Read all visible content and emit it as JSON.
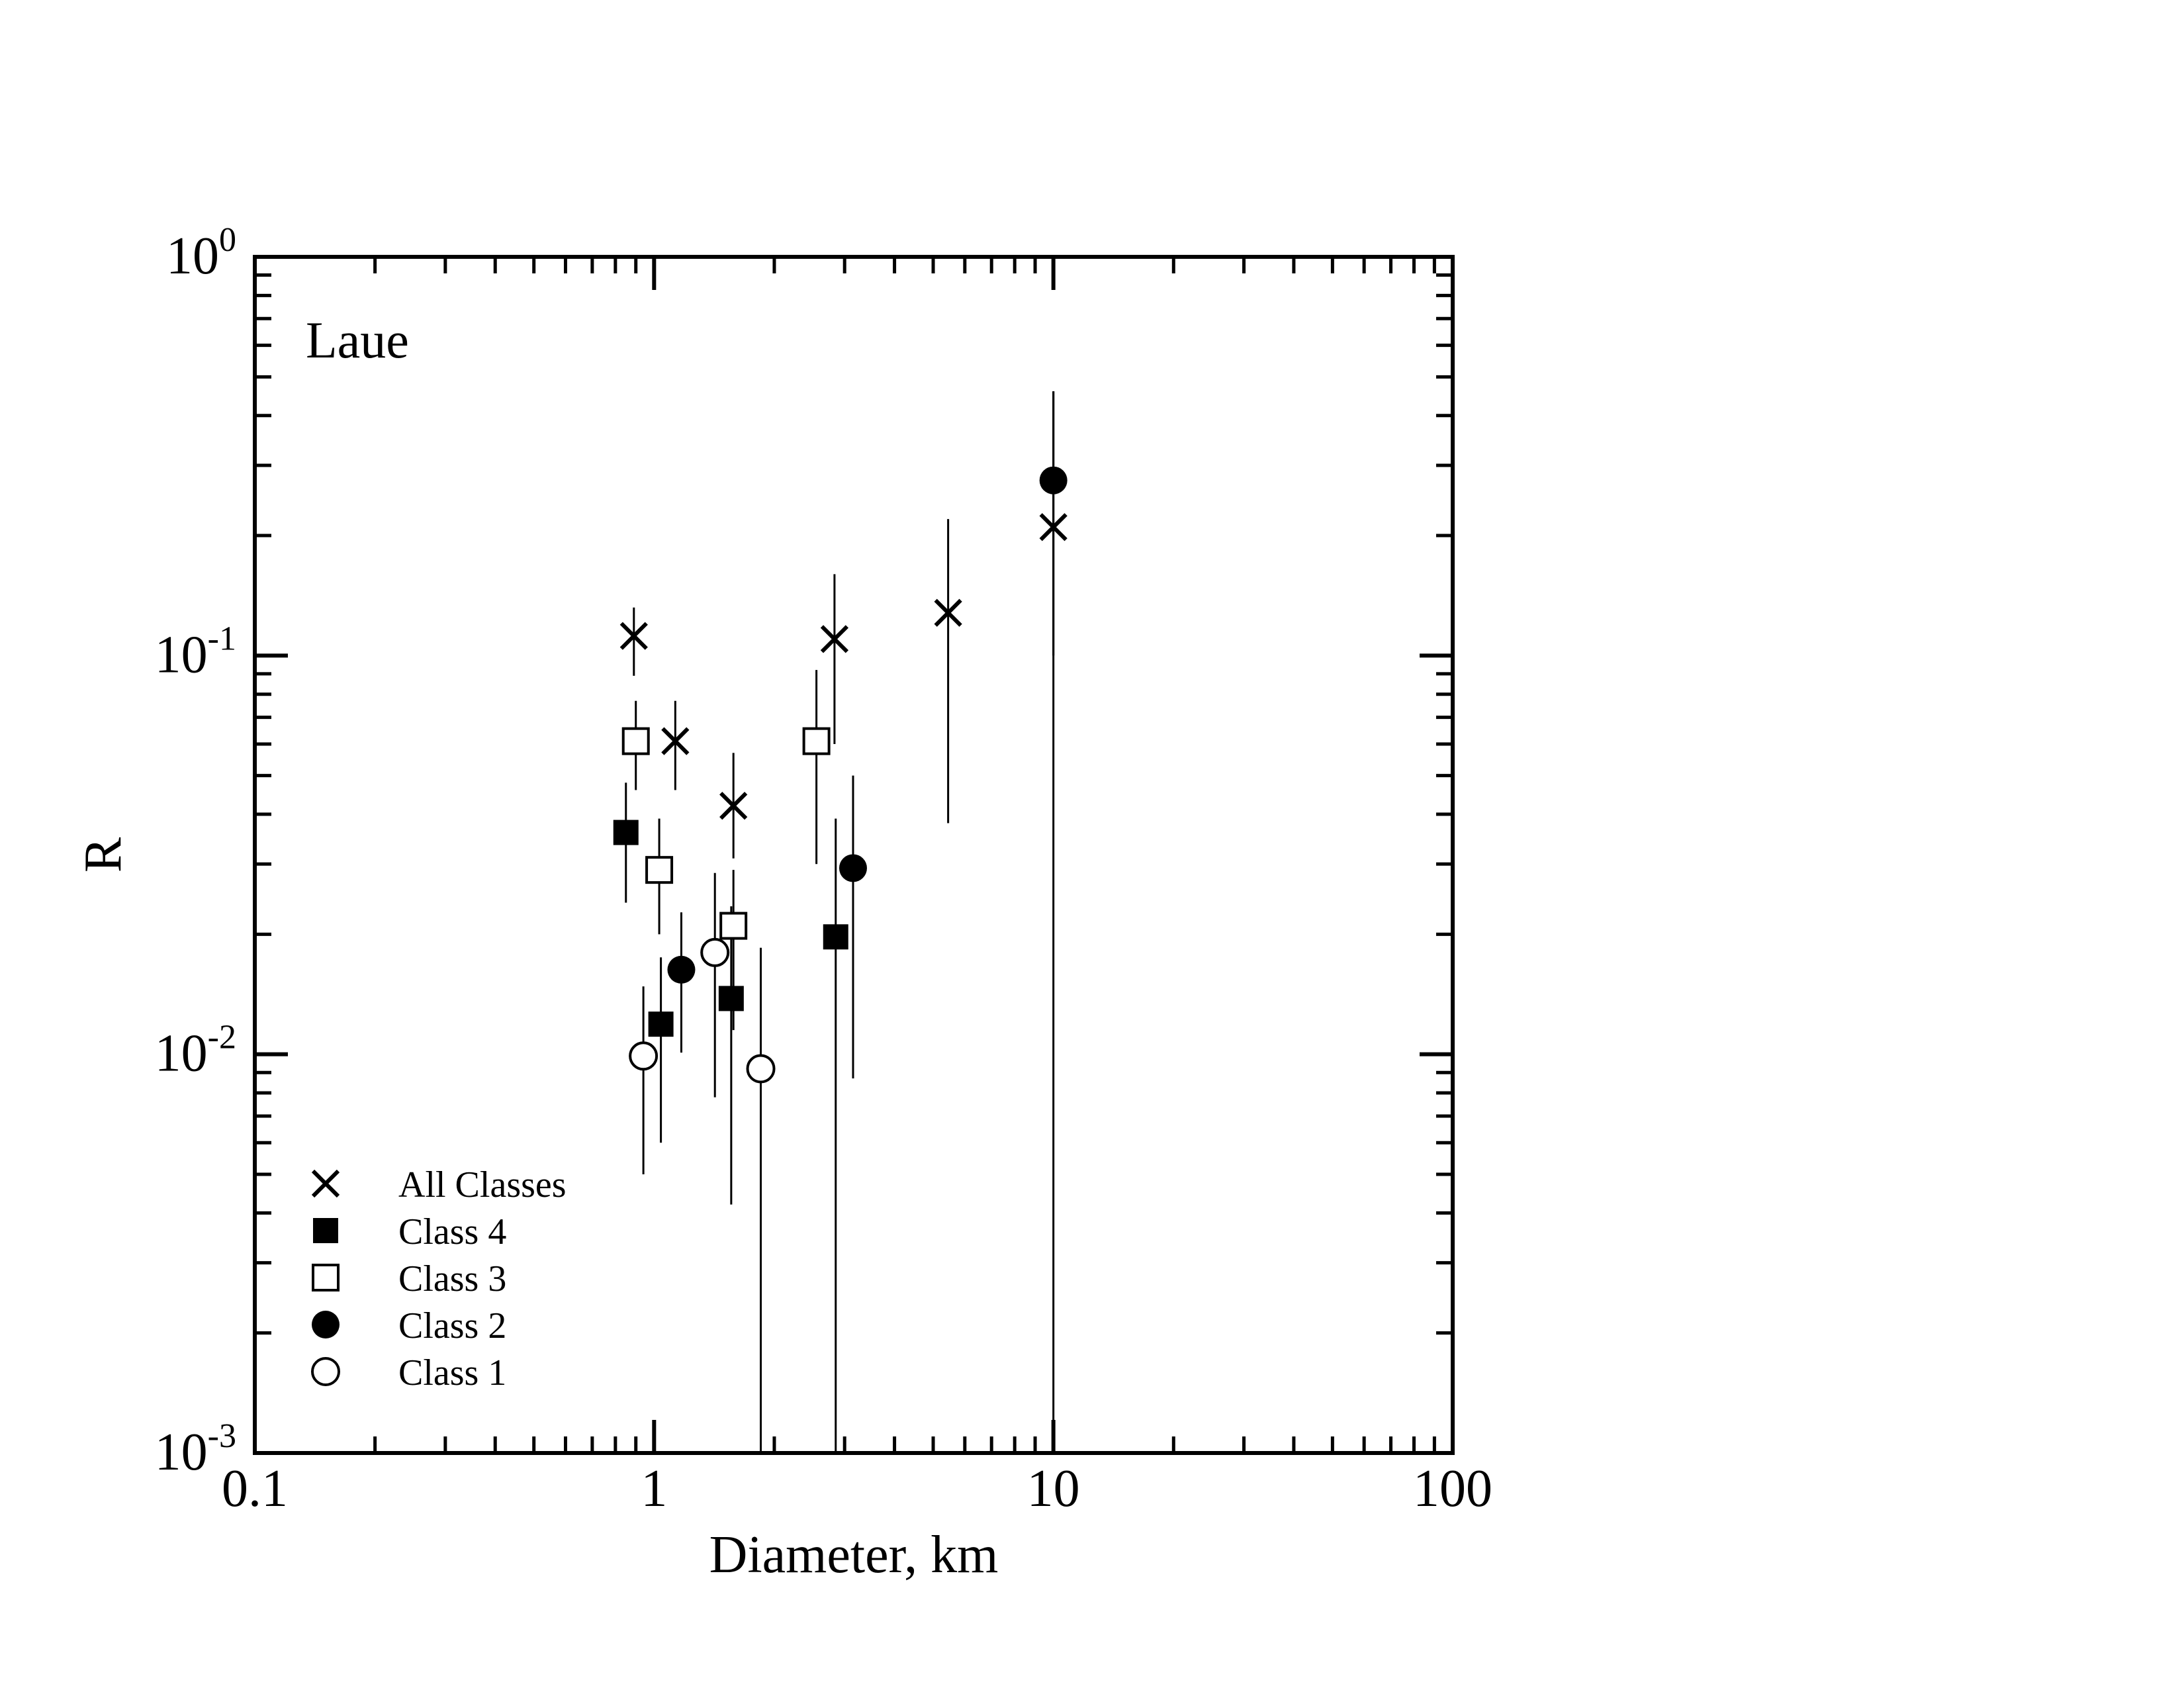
{
  "chart_data": {
    "type": "scatter",
    "annotation": "Laue",
    "xlabel": "Diameter, km",
    "ylabel": "R",
    "xscale": "log",
    "yscale": "log",
    "xlim": [
      0.1,
      100
    ],
    "ylim": [
      0.001,
      1
    ],
    "x_tick_labels": [
      "0.1",
      "1",
      "10",
      "100"
    ],
    "y_tick_labels": [
      {
        "base": "10",
        "exp": "0"
      },
      {
        "base": "10",
        "exp": "-1"
      },
      {
        "base": "10",
        "exp": "-2"
      },
      {
        "base": "10",
        "exp": "-3"
      }
    ],
    "grid": false,
    "legend_position": "lower-left",
    "series": [
      {
        "name": "All Classes",
        "marker": "x",
        "points": [
          {
            "x": 0.89,
            "y": 0.112,
            "ylo": 0.089,
            "yhi": 0.132
          },
          {
            "x": 1.13,
            "y": 0.061,
            "ylo": 0.046,
            "yhi": 0.077
          },
          {
            "x": 1.58,
            "y": 0.042,
            "ylo": 0.031,
            "yhi": 0.057
          },
          {
            "x": 2.83,
            "y": 0.11,
            "ylo": 0.06,
            "yhi": 0.16
          },
          {
            "x": 5.45,
            "y": 0.128,
            "ylo": 0.038,
            "yhi": 0.22
          },
          {
            "x": 10.0,
            "y": 0.21,
            "ylo": 0.001,
            "yhi": 0.46
          }
        ]
      },
      {
        "name": "Class 4",
        "marker": "filled-square",
        "points": [
          {
            "x": 0.85,
            "y": 0.036,
            "ylo": 0.024,
            "yhi": 0.048
          },
          {
            "x": 1.04,
            "y": 0.0119,
            "ylo": 0.006,
            "yhi": 0.0175
          },
          {
            "x": 1.56,
            "y": 0.0138,
            "ylo": 0.0042,
            "yhi": 0.0235
          },
          {
            "x": 2.85,
            "y": 0.0197,
            "ylo": 0.001,
            "yhi": 0.039
          }
        ]
      },
      {
        "name": "Class 3",
        "marker": "open-square",
        "points": [
          {
            "x": 0.9,
            "y": 0.061,
            "ylo": 0.046,
            "yhi": 0.077
          },
          {
            "x": 1.03,
            "y": 0.029,
            "ylo": 0.02,
            "yhi": 0.039
          },
          {
            "x": 1.58,
            "y": 0.021,
            "ylo": 0.0115,
            "yhi": 0.029
          },
          {
            "x": 2.55,
            "y": 0.061,
            "ylo": 0.03,
            "yhi": 0.092
          }
        ]
      },
      {
        "name": "Class 2",
        "marker": "filled-circle",
        "points": [
          {
            "x": 1.17,
            "y": 0.0163,
            "ylo": 0.0101,
            "yhi": 0.0227
          },
          {
            "x": 3.15,
            "y": 0.0293,
            "ylo": 0.0087,
            "yhi": 0.05
          },
          {
            "x": 10.0,
            "y": 0.275,
            "ylo": 0.1,
            "yhi": 0.46
          }
        ]
      },
      {
        "name": "Class 1",
        "marker": "open-circle",
        "points": [
          {
            "x": 0.94,
            "y": 0.0099,
            "ylo": 0.005,
            "yhi": 0.0148
          },
          {
            "x": 1.42,
            "y": 0.018,
            "ylo": 0.0078,
            "yhi": 0.0285
          },
          {
            "x": 1.85,
            "y": 0.0092,
            "ylo": 0.001,
            "yhi": 0.0185
          }
        ]
      }
    ]
  }
}
